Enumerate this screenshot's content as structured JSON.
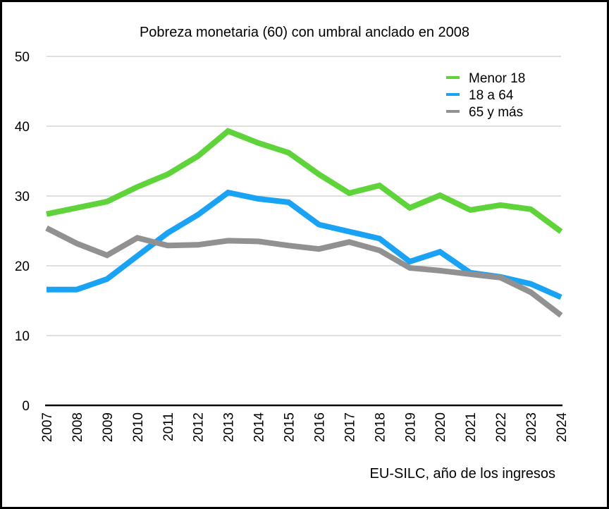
{
  "chart_data": {
    "type": "line",
    "title": "Pobreza monetaria (60) con umbral anclado en 2008",
    "xlabel": "EU-SILC, año de los ingresos",
    "ylabel": "",
    "ylim": [
      0,
      50
    ],
    "yticks": [
      0,
      10,
      20,
      30,
      40,
      50
    ],
    "grid": true,
    "legend_position": "top-right",
    "categories": [
      "2007",
      "2008",
      "2009",
      "2010",
      "2011",
      "2012",
      "2013",
      "2014",
      "2015",
      "2016",
      "2017",
      "2018",
      "2019",
      "2020",
      "2021",
      "2022",
      "2023",
      "2024"
    ],
    "series": [
      {
        "name": "Menor 18",
        "color": "#5fd43a",
        "values": [
          27.4,
          28.3,
          29.2,
          31.3,
          33.1,
          35.7,
          39.3,
          37.6,
          36.2,
          33.1,
          30.4,
          31.5,
          28.3,
          30.1,
          28.0,
          28.7,
          28.1,
          24.9
        ]
      },
      {
        "name": "18 a 64",
        "color": "#1aa2f5",
        "values": [
          16.6,
          16.6,
          18.1,
          21.4,
          24.7,
          27.3,
          30.5,
          29.6,
          29.1,
          25.9,
          24.9,
          23.9,
          20.6,
          22.0,
          19.0,
          18.4,
          17.4,
          15.5
        ]
      },
      {
        "name": "65 y más",
        "color": "#919191",
        "values": [
          25.4,
          23.2,
          21.5,
          24.0,
          22.9,
          23.0,
          23.6,
          23.5,
          22.9,
          22.4,
          23.4,
          22.2,
          19.7,
          19.3,
          18.8,
          18.3,
          16.2,
          12.9
        ]
      }
    ]
  }
}
